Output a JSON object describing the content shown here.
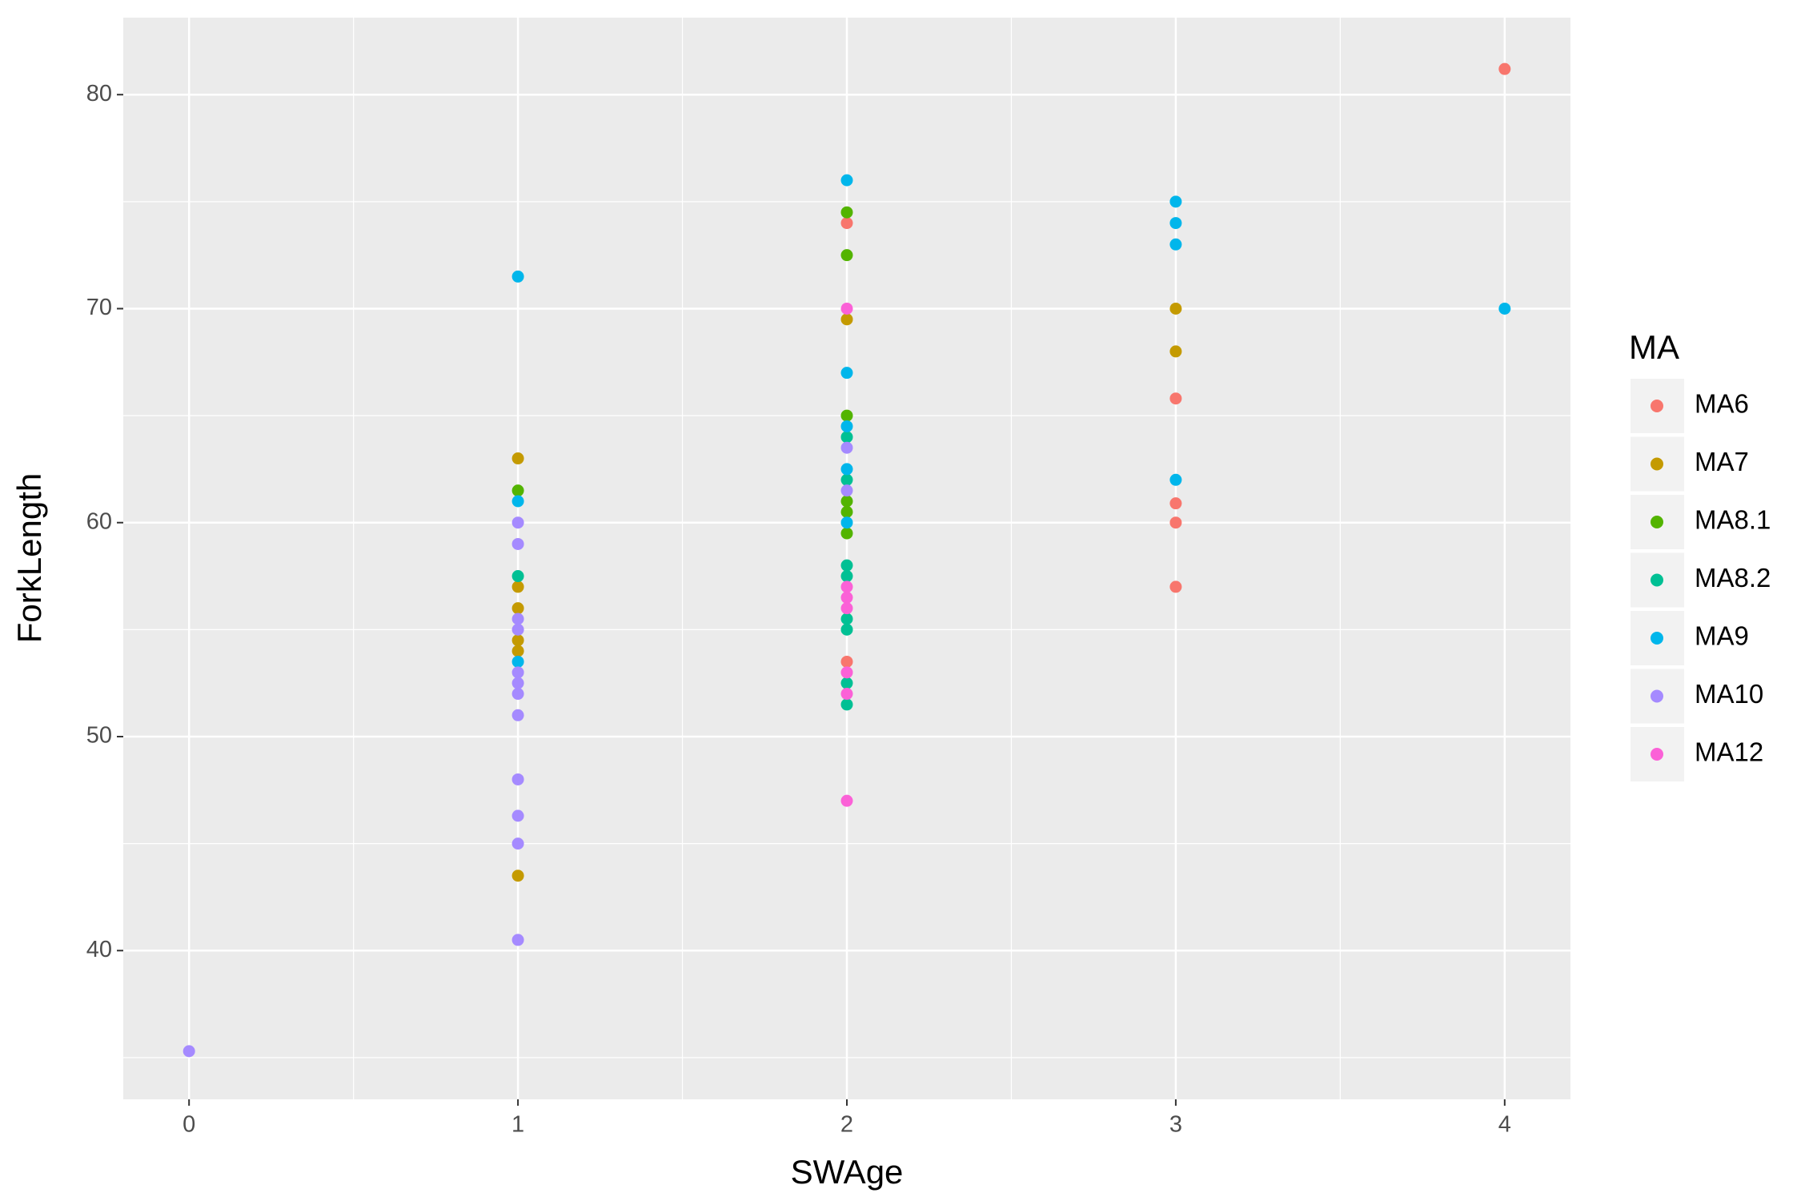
{
  "chart_data": {
    "type": "scatter",
    "x_label": "SWAge",
    "y_label": "ForkLength",
    "legend_title": "MA",
    "xlim": [
      -0.2,
      4.2
    ],
    "ylim": [
      33.05,
      83.6
    ],
    "xticks": [
      0,
      1,
      2,
      3,
      4
    ],
    "yticks": [
      40,
      50,
      60,
      70,
      80
    ],
    "grid": true,
    "legend": "right",
    "series": [
      {
        "name": "MA6",
        "color": "#F8766D",
        "x": [
          4,
          2,
          3,
          3,
          3,
          3,
          2
        ],
        "values": [
          81.2,
          74,
          65.8,
          60.9,
          60,
          57,
          53.5
        ]
      },
      {
        "name": "MA7",
        "color": "#C49A00",
        "x": [
          1,
          1,
          1,
          1,
          1,
          1,
          2,
          3,
          3
        ],
        "values": [
          63,
          57,
          56,
          54.5,
          54,
          43.5,
          69.5,
          70,
          68
        ]
      },
      {
        "name": "MA8.1",
        "color": "#53B400",
        "x": [
          1,
          2,
          2,
          2,
          2,
          2,
          2
        ],
        "values": [
          61.5,
          74.5,
          72.5,
          65,
          61,
          60.5,
          59.5
        ]
      },
      {
        "name": "MA8.2",
        "color": "#00C094",
        "x": [
          1,
          2,
          2,
          2,
          2,
          2,
          2,
          2,
          2
        ],
        "values": [
          57.5,
          64,
          62,
          58,
          57.5,
          55.5,
          55,
          52.5,
          51.5
        ]
      },
      {
        "name": "MA9",
        "color": "#00B6EB",
        "x": [
          1,
          1,
          1,
          2,
          2,
          2,
          2,
          2,
          3,
          3,
          3,
          3,
          4
        ],
        "values": [
          71.5,
          61,
          53.5,
          76,
          67,
          64.5,
          62.5,
          60,
          75,
          74,
          73,
          62,
          70
        ]
      },
      {
        "name": "MA10",
        "color": "#A58AFF",
        "x": [
          0,
          1,
          1,
          1,
          1,
          1,
          1,
          1,
          1,
          1,
          1,
          1,
          1,
          2,
          2
        ],
        "values": [
          35.3,
          60,
          59,
          55.5,
          55,
          53,
          52.5,
          52,
          51,
          48,
          46.3,
          45,
          40.5,
          63.5,
          61.5
        ]
      },
      {
        "name": "MA12",
        "color": "#FB61D7",
        "x": [
          2,
          2,
          2,
          2,
          2,
          2,
          2
        ],
        "values": [
          70,
          57,
          56.5,
          56,
          53,
          52,
          47
        ]
      }
    ]
  }
}
